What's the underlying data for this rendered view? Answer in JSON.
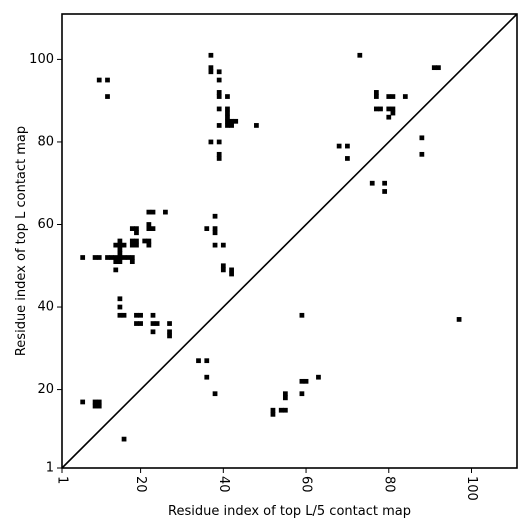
{
  "chart_data": {
    "type": "scatter",
    "xlabel": "Residue index of top L/5 contact map",
    "ylabel": "Residue index of top L contact map",
    "xlim": [
      1,
      111
    ],
    "ylim": [
      1,
      111
    ],
    "xticks": [
      1,
      20,
      40,
      60,
      80,
      100
    ],
    "yticks": [
      1,
      20,
      40,
      60,
      80,
      100
    ],
    "xtick_labels": [
      "1",
      "20",
      "40",
      "60",
      "80",
      "100"
    ],
    "ytick_labels": [
      "1",
      "20",
      "40",
      "60",
      "80",
      "100"
    ],
    "xtick_rotation": 90,
    "diagonal_line": true,
    "grid": false,
    "marker_color": "#000000",
    "points": [
      [
        10,
        95
      ],
      [
        12,
        95
      ],
      [
        12,
        91
      ],
      [
        37,
        101
      ],
      [
        37,
        98
      ],
      [
        37,
        97
      ],
      [
        39,
        97
      ],
      [
        39,
        95
      ],
      [
        39,
        92
      ],
      [
        39,
        91
      ],
      [
        41,
        91
      ],
      [
        39,
        88
      ],
      [
        41,
        88
      ],
      [
        41,
        87
      ],
      [
        41,
        86
      ],
      [
        41,
        85
      ],
      [
        42,
        85
      ],
      [
        43,
        85
      ],
      [
        41,
        84
      ],
      [
        42,
        84
      ],
      [
        39,
        84
      ],
      [
        48,
        84
      ],
      [
        37,
        80
      ],
      [
        39,
        80
      ],
      [
        39,
        77
      ],
      [
        39,
        76
      ],
      [
        73,
        101
      ],
      [
        91,
        98
      ],
      [
        92,
        98
      ],
      [
        77,
        92
      ],
      [
        77,
        91
      ],
      [
        80,
        91
      ],
      [
        81,
        91
      ],
      [
        84,
        91
      ],
      [
        77,
        88
      ],
      [
        78,
        88
      ],
      [
        80,
        88
      ],
      [
        81,
        88
      ],
      [
        81,
        87
      ],
      [
        80,
        86
      ],
      [
        68,
        79
      ],
      [
        70,
        79
      ],
      [
        70,
        76
      ],
      [
        88,
        81
      ],
      [
        88,
        77
      ],
      [
        76,
        70
      ],
      [
        79,
        70
      ],
      [
        79,
        68
      ],
      [
        6,
        52
      ],
      [
        9,
        52
      ],
      [
        10,
        52
      ],
      [
        12,
        52
      ],
      [
        13,
        52
      ],
      [
        14,
        52
      ],
      [
        15,
        52
      ],
      [
        16,
        52
      ],
      [
        17,
        52
      ],
      [
        18,
        52
      ],
      [
        14,
        51
      ],
      [
        15,
        51
      ],
      [
        18,
        51
      ],
      [
        14,
        55
      ],
      [
        15,
        55
      ],
      [
        16,
        55
      ],
      [
        15,
        56
      ],
      [
        15,
        54
      ],
      [
        15,
        53
      ],
      [
        14,
        49
      ],
      [
        18,
        55
      ],
      [
        19,
        55
      ],
      [
        18,
        56
      ],
      [
        19,
        56
      ],
      [
        18,
        59
      ],
      [
        19,
        59
      ],
      [
        19,
        58
      ],
      [
        21,
        56
      ],
      [
        22,
        56
      ],
      [
        22,
        55
      ],
      [
        22,
        60
      ],
      [
        22,
        59
      ],
      [
        23,
        59
      ],
      [
        22,
        63
      ],
      [
        23,
        63
      ],
      [
        26,
        63
      ],
      [
        38,
        62
      ],
      [
        36,
        59
      ],
      [
        38,
        59
      ],
      [
        38,
        58
      ],
      [
        38,
        55
      ],
      [
        40,
        55
      ],
      [
        40,
        50
      ],
      [
        40,
        49
      ],
      [
        42,
        49
      ],
      [
        42,
        48
      ],
      [
        15,
        42
      ],
      [
        15,
        40
      ],
      [
        15,
        38
      ],
      [
        16,
        38
      ],
      [
        19,
        38
      ],
      [
        20,
        38
      ],
      [
        19,
        36
      ],
      [
        20,
        36
      ],
      [
        23,
        38
      ],
      [
        23,
        36
      ],
      [
        24,
        36
      ],
      [
        27,
        36
      ],
      [
        23,
        34
      ],
      [
        27,
        34
      ],
      [
        27,
        33
      ],
      [
        34,
        27
      ],
      [
        36,
        27
      ],
      [
        36,
        23
      ],
      [
        38,
        19
      ],
      [
        59,
        38
      ],
      [
        97,
        37
      ],
      [
        6,
        17
      ],
      [
        9,
        17
      ],
      [
        10,
        17
      ],
      [
        9,
        16
      ],
      [
        10,
        16
      ],
      [
        16,
        8
      ],
      [
        52,
        15
      ],
      [
        52,
        14
      ],
      [
        54,
        15
      ],
      [
        55,
        15
      ],
      [
        55,
        19
      ],
      [
        55,
        18
      ],
      [
        59,
        22
      ],
      [
        60,
        22
      ],
      [
        59,
        19
      ],
      [
        63,
        23
      ]
    ]
  }
}
